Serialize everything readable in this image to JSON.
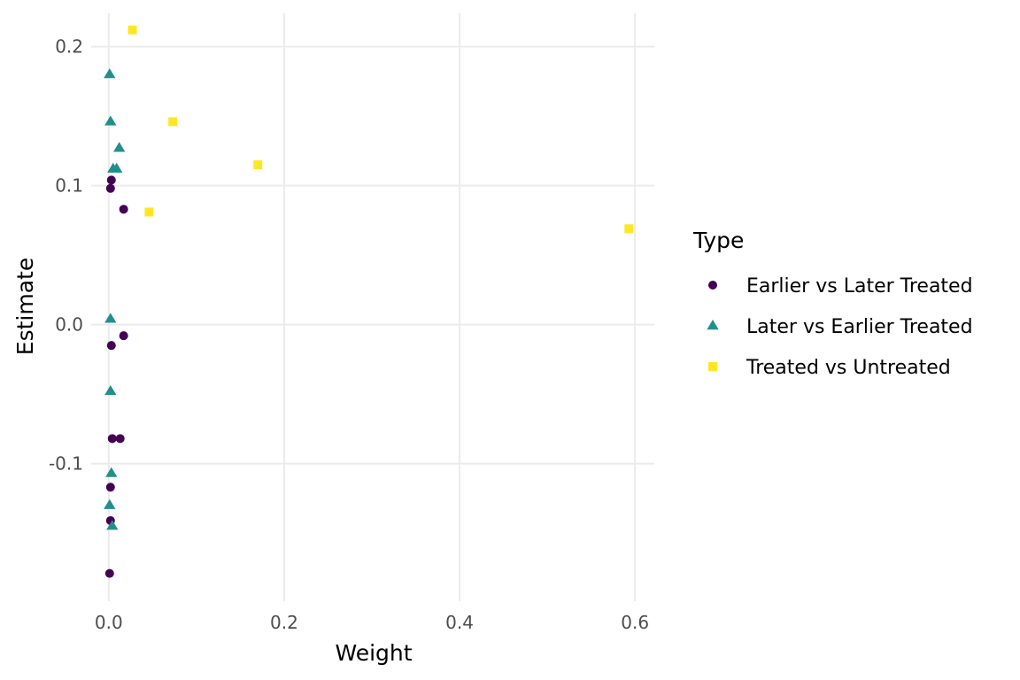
{
  "chart_data": {
    "type": "scatter",
    "xlabel": "Weight",
    "ylabel": "Estimate",
    "xlim": [
      -0.02,
      0.622
    ],
    "ylim": [
      -0.199,
      0.224
    ],
    "x_ticks": [
      0.0,
      0.2,
      0.4,
      0.6
    ],
    "x_tick_labels": [
      "0.0",
      "0.2",
      "0.4",
      "0.6"
    ],
    "y_ticks": [
      -0.1,
      0.0,
      0.1,
      0.2
    ],
    "y_tick_labels": [
      "-0.1",
      "0.0",
      "0.1",
      "0.2"
    ],
    "grid": true,
    "legend": {
      "title": "Type",
      "placement": "right"
    },
    "series": [
      {
        "name": "Earlier vs Later Treated",
        "color": "#440154",
        "shape": "circle",
        "points": [
          {
            "x": 0.003,
            "y": 0.104
          },
          {
            "x": 0.002,
            "y": 0.098
          },
          {
            "x": 0.017,
            "y": 0.083
          },
          {
            "x": 0.017,
            "y": -0.008
          },
          {
            "x": 0.003,
            "y": -0.015
          },
          {
            "x": 0.004,
            "y": -0.082
          },
          {
            "x": 0.013,
            "y": -0.082
          },
          {
            "x": 0.002,
            "y": -0.117
          },
          {
            "x": 0.002,
            "y": -0.141
          },
          {
            "x": 0.001,
            "y": -0.179
          }
        ]
      },
      {
        "name": "Later vs Earlier Treated",
        "color": "#21908c",
        "shape": "triangle",
        "points": [
          {
            "x": 0.001,
            "y": 0.18
          },
          {
            "x": 0.002,
            "y": 0.146
          },
          {
            "x": 0.012,
            "y": 0.127
          },
          {
            "x": 0.005,
            "y": 0.112
          },
          {
            "x": 0.009,
            "y": 0.112
          },
          {
            "x": 0.002,
            "y": 0.004
          },
          {
            "x": 0.002,
            "y": -0.048
          },
          {
            "x": 0.003,
            "y": -0.107
          },
          {
            "x": 0.001,
            "y": -0.13
          },
          {
            "x": 0.004,
            "y": -0.145
          }
        ]
      },
      {
        "name": "Treated vs Untreated",
        "color": "#fde725",
        "shape": "square",
        "points": [
          {
            "x": 0.027,
            "y": 0.212
          },
          {
            "x": 0.073,
            "y": 0.146
          },
          {
            "x": 0.17,
            "y": 0.115
          },
          {
            "x": 0.046,
            "y": 0.081
          },
          {
            "x": 0.593,
            "y": 0.069
          }
        ]
      }
    ]
  }
}
